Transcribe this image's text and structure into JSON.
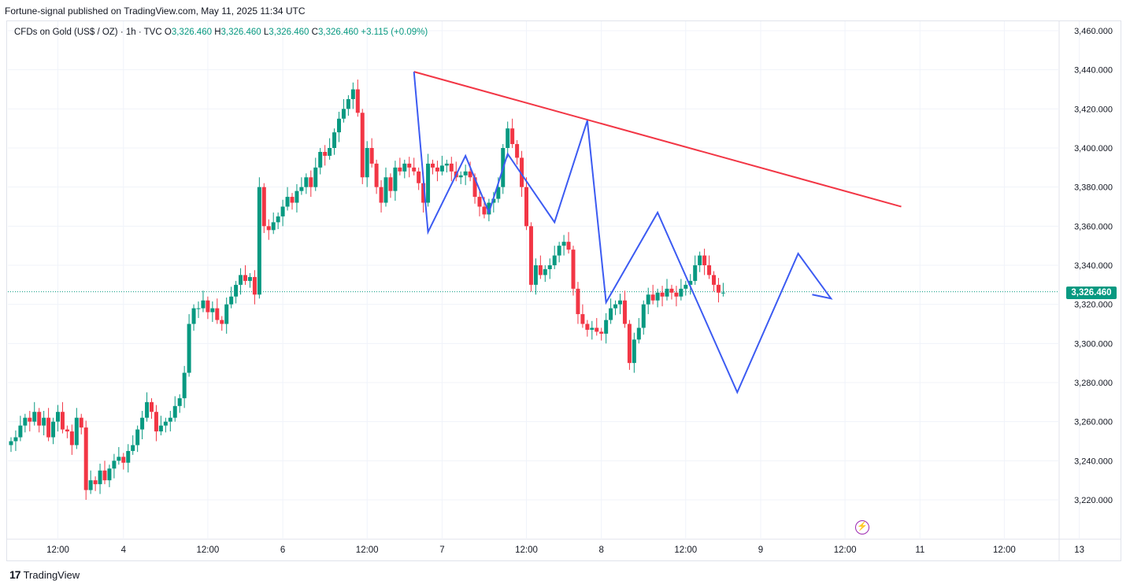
{
  "header": {
    "publisher": "Fortune-signal published on TradingView.com, May 11, 2025 11:34 UTC"
  },
  "legend": {
    "symbol": "CFDs on Gold (US$ / OZ) · 1h · TVC",
    "o_label": "O",
    "o": "3,326.460",
    "h_label": "H",
    "h": "3,326.460",
    "l_label": "L",
    "l": "3,326.460",
    "c_label": "C",
    "c": "3,326.460",
    "change": "+3.115 (+0.09%)"
  },
  "last_price": "3,326.460",
  "footer": {
    "brand": "TradingView",
    "logo": "tradingview-logo-icon"
  },
  "colors": {
    "up": "#089981",
    "down": "#f23645",
    "trendline": "#f23645",
    "zigzag": "#3c5bf2",
    "grid": "#f0f3fa"
  },
  "chart_data": {
    "type": "candlestick",
    "ylim": [
      3205,
      3465
    ],
    "y_ticks": [
      3220,
      3240,
      3260,
      3280,
      3300,
      3320,
      3340,
      3360,
      3380,
      3400,
      3420,
      3440,
      3460
    ],
    "y_tick_labels": [
      "3,220.000",
      "3,240.000",
      "3,260.000",
      "3,280.000",
      "3,300.000",
      "3,320.000",
      "3,340.000",
      "3,360.000",
      "3,380.000",
      "3,400.000",
      "3,420.000",
      "3,440.000",
      "3,460.000"
    ],
    "x_range": [
      0,
      228
    ],
    "x_ticks": [
      {
        "i": 10,
        "label": "12:00"
      },
      {
        "i": 24,
        "label": "4"
      },
      {
        "i": 42,
        "label": "12:00"
      },
      {
        "i": 58,
        "label": "6"
      },
      {
        "i": 76,
        "label": "12:00"
      },
      {
        "i": 92,
        "label": "7"
      },
      {
        "i": 110,
        "label": "12:00"
      },
      {
        "i": 126,
        "label": "8"
      },
      {
        "i": 144,
        "label": "12:00"
      },
      {
        "i": 160,
        "label": "9"
      },
      {
        "i": 178,
        "label": "12:00"
      },
      {
        "i": 194,
        "label": "11"
      },
      {
        "i": 212,
        "label": "12:00"
      },
      {
        "i": 228,
        "label": "13"
      }
    ],
    "last_price": 3326.46,
    "closes": [
      3250,
      3252,
      3258,
      3262,
      3260,
      3265,
      3258,
      3262,
      3252,
      3260,
      3265,
      3256,
      3255,
      3248,
      3262,
      3257,
      3225,
      3230,
      3228,
      3235,
      3230,
      3236,
      3240,
      3242,
      3239,
      3245,
      3248,
      3256,
      3262,
      3270,
      3265,
      3255,
      3258,
      3260,
      3262,
      3268,
      3272,
      3285,
      3310,
      3318,
      3318,
      3322,
      3316,
      3318,
      3312,
      3310,
      3320,
      3324,
      3330,
      3335,
      3332,
      3334,
      3325,
      3380,
      3360,
      3358,
      3362,
      3365,
      3370,
      3375,
      3372,
      3378,
      3380,
      3385,
      3380,
      3390,
      3398,
      3396,
      3400,
      3408,
      3415,
      3420,
      3425,
      3430,
      3418,
      3385,
      3400,
      3392,
      3380,
      3372,
      3385,
      3378,
      3390,
      3388,
      3392,
      3390,
      3388,
      3382,
      3372,
      3392,
      3390,
      3388,
      3391,
      3392,
      3388,
      3385,
      3386,
      3388,
      3385,
      3375,
      3370,
      3366,
      3372,
      3374,
      3380,
      3400,
      3410,
      3402,
      3395,
      3380,
      3360,
      3330,
      3340,
      3335,
      3338,
      3340,
      3345,
      3350,
      3352,
      3348,
      3328,
      3315,
      3310,
      3307,
      3308,
      3306,
      3305,
      3312,
      3318,
      3320,
      3322,
      3310,
      3290,
      3302,
      3308,
      3320,
      3325,
      3322,
      3326,
      3324,
      3328,
      3326,
      3324,
      3328,
      3330,
      3332,
      3340,
      3345,
      3340,
      3335,
      3330,
      3326,
      3326
    ]
  }
}
